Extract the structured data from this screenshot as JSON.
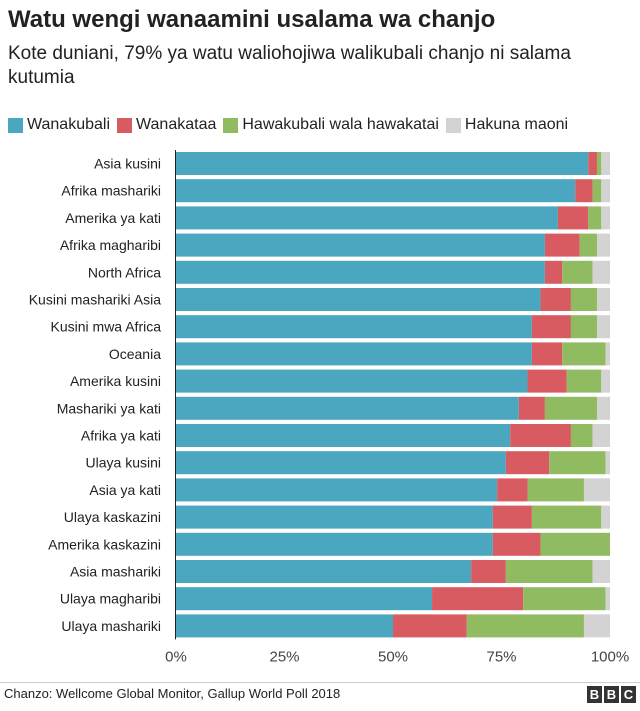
{
  "header": {
    "title": "Watu wengi wanaamini usalama wa chanjo",
    "subtitle": "Kote duniani, 79% ya watu waliohojiwa walikubali chanjo ni salama kutumia"
  },
  "footer": {
    "source": "Chanzo: Wellcome Global Monitor, Gallup World Poll 2018",
    "logo_letters": [
      "B",
      "B",
      "C"
    ]
  },
  "colors": {
    "Wanakubali": "#4ba6c0",
    "Wanakataa": "#d85b61",
    "Hawakubali wala hawakatai": "#91bb60",
    "Hakuna maoni": "#d3d3d3"
  },
  "chart_data": {
    "type": "bar",
    "orientation": "horizontal",
    "stacked": true,
    "title": "Watu wengi wanaamini usalama wa chanjo",
    "subtitle": "Kote duniani, 79% ya watu waliohojiwa walikubali chanjo ni salama kutumia",
    "legend_position": "top",
    "xlim": [
      0,
      100
    ],
    "x_ticks": [
      "0%",
      "25%",
      "50%",
      "75%",
      "100%"
    ],
    "categories": [
      "Asia kusini",
      "Afrika mashariki",
      "Amerika ya kati",
      "Afrika magharibi",
      "North Africa",
      "Kusini mashariki Asia",
      "Kusini mwa Africa",
      "Oceania",
      "Amerika kusini",
      "Mashariki ya kati",
      "Afrika ya kati",
      "Ulaya kusini",
      "Asia ya kati",
      "Ulaya kaskazini",
      "Amerika kaskazini",
      "Asia mashariki",
      "Ulaya magharibi",
      "Ulaya mashariki"
    ],
    "series": [
      {
        "name": "Wanakubali",
        "values": [
          95,
          92,
          88,
          85,
          85,
          84,
          82,
          82,
          81,
          79,
          77,
          76,
          74,
          73,
          73,
          68,
          59,
          50
        ]
      },
      {
        "name": "Wanakataa",
        "values": [
          2,
          4,
          7,
          8,
          4,
          7,
          9,
          7,
          9,
          6,
          14,
          10,
          7,
          9,
          11,
          8,
          21,
          17
        ]
      },
      {
        "name": "Hawakubali wala hawakatai",
        "values": [
          1,
          2,
          3,
          4,
          7,
          6,
          6,
          10,
          8,
          12,
          5,
          13,
          13,
          16,
          16,
          20,
          19,
          27
        ]
      },
      {
        "name": "Hakuna maoni",
        "values": [
          2,
          2,
          2,
          3,
          4,
          3,
          3,
          1,
          2,
          3,
          4,
          1,
          6,
          2,
          0,
          4,
          1,
          6
        ]
      }
    ]
  }
}
